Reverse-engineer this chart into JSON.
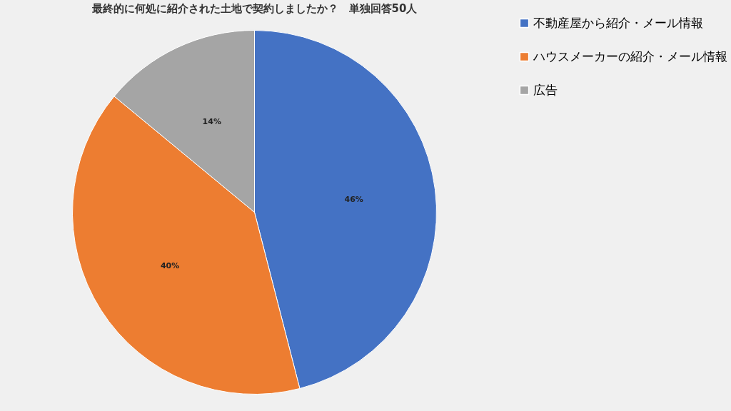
{
  "chart_data": {
    "type": "pie",
    "title": "最終的に何処に紹介された土地で契約しましたか？　単独回答50人",
    "categories": [
      "不動産屋から紹介・メール情報",
      "ハウスメーカーの紹介・メール情報",
      "広告"
    ],
    "values": [
      46,
      40,
      14
    ],
    "colors": [
      "#4472c4",
      "#ed7d31",
      "#a5a5a5"
    ],
    "value_labels": [
      "46%",
      "40%",
      "14%"
    ],
    "legend": "right"
  }
}
